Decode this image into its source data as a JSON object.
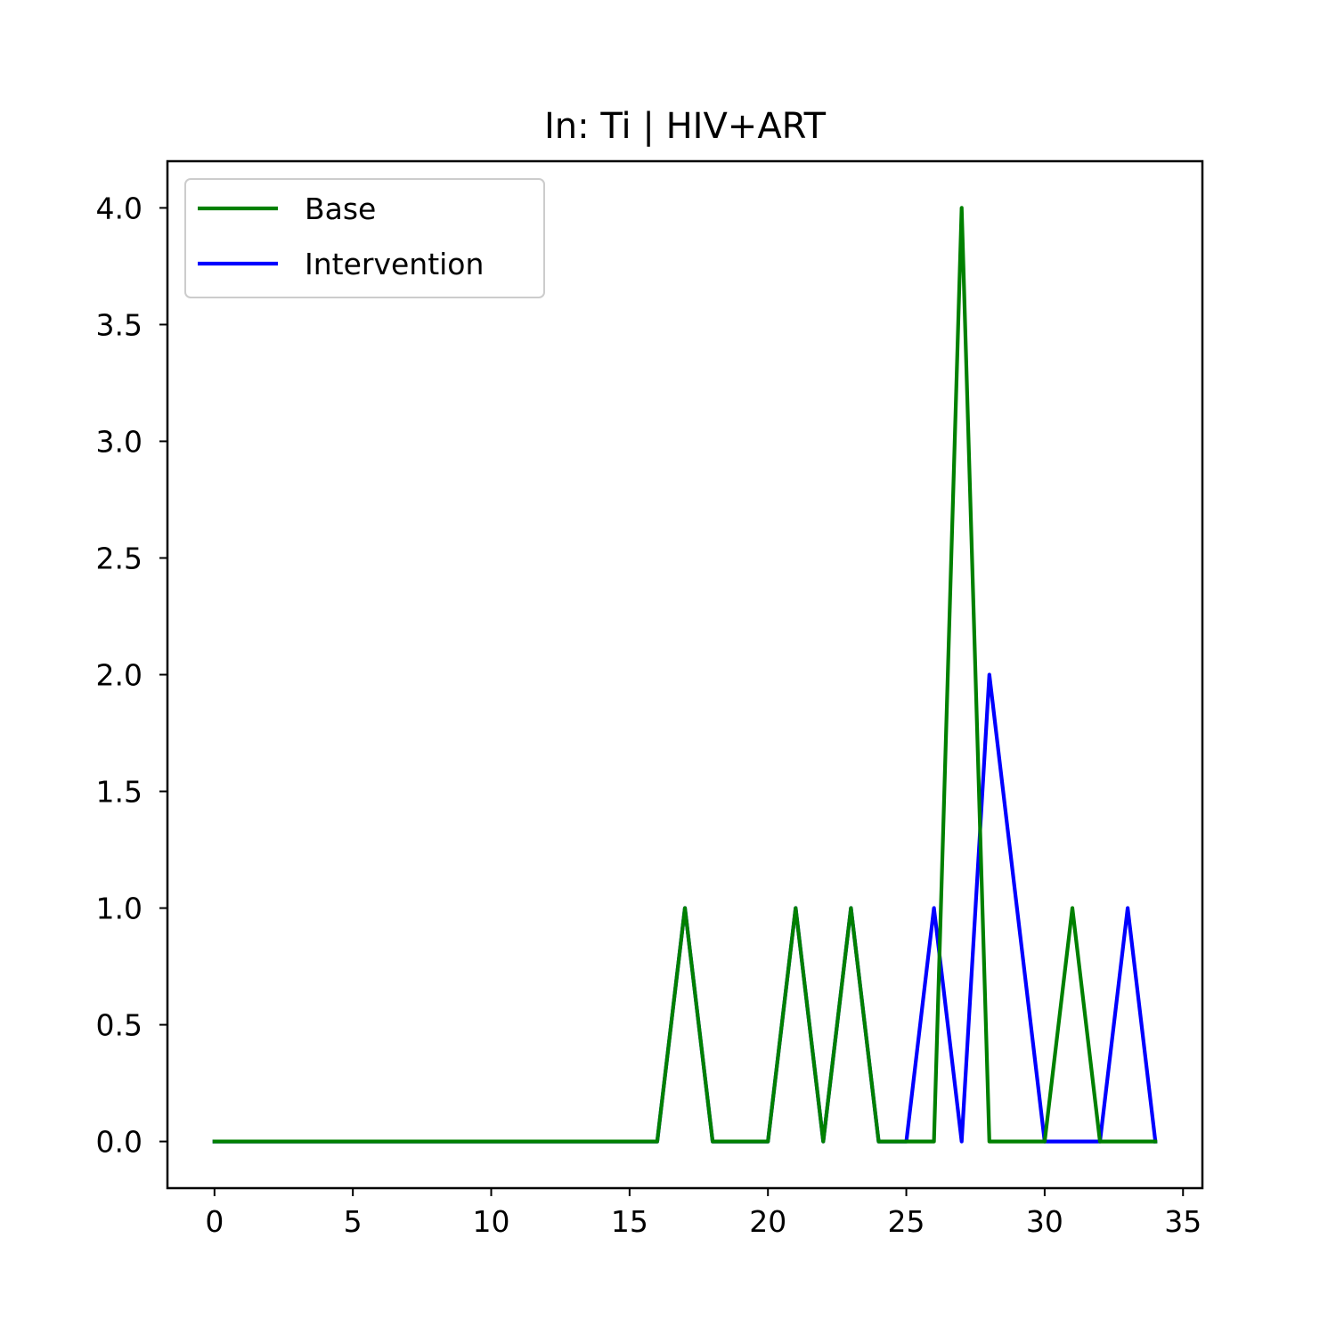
{
  "chart_data": {
    "type": "line",
    "title": "In: Ti | HIV+ART",
    "xlabel": "",
    "ylabel": "",
    "xlim": [
      -1.7,
      35.7
    ],
    "ylim": [
      -0.2,
      4.2
    ],
    "xticks": [
      0,
      5,
      10,
      15,
      20,
      25,
      30,
      35
    ],
    "xtick_labels": [
      "0",
      "5",
      "10",
      "15",
      "20",
      "25",
      "30",
      "35"
    ],
    "yticks": [
      0,
      0.5,
      1,
      1.5,
      2,
      2.5,
      3,
      3.5,
      4
    ],
    "ytick_labels": [
      "0.0",
      "0.5",
      "1.0",
      "1.5",
      "2.0",
      "2.5",
      "3.0",
      "3.5",
      "4.0"
    ],
    "grid": false,
    "legend_position": "top-left",
    "series": [
      {
        "name": "Intervention",
        "color": "#0000ff",
        "x": [
          0,
          1,
          2,
          3,
          4,
          5,
          6,
          7,
          8,
          9,
          10,
          11,
          12,
          13,
          14,
          15,
          16,
          17,
          18,
          19,
          20,
          21,
          22,
          23,
          24,
          25,
          26,
          27,
          28,
          29,
          30,
          31,
          32,
          33,
          34
        ],
        "y": [
          0,
          0,
          0,
          0,
          0,
          0,
          0,
          0,
          0,
          0,
          0,
          0,
          0,
          0,
          0,
          0,
          0,
          1,
          0,
          0,
          0,
          1,
          0,
          1,
          0,
          0,
          1,
          0,
          2,
          1,
          0,
          0,
          0,
          1,
          0
        ]
      },
      {
        "name": "Base",
        "color": "#008000",
        "x": [
          0,
          1,
          2,
          3,
          4,
          5,
          6,
          7,
          8,
          9,
          10,
          11,
          12,
          13,
          14,
          15,
          16,
          17,
          18,
          19,
          20,
          21,
          22,
          23,
          24,
          25,
          26,
          27,
          28,
          29,
          30,
          31,
          32,
          33,
          34
        ],
        "y": [
          0,
          0,
          0,
          0,
          0,
          0,
          0,
          0,
          0,
          0,
          0,
          0,
          0,
          0,
          0,
          0,
          0,
          1,
          0,
          0,
          0,
          1,
          0,
          1,
          0,
          0,
          0,
          4,
          0,
          0,
          0,
          1,
          0,
          0,
          0
        ]
      }
    ],
    "legend_order": [
      "Base",
      "Intervention"
    ]
  }
}
